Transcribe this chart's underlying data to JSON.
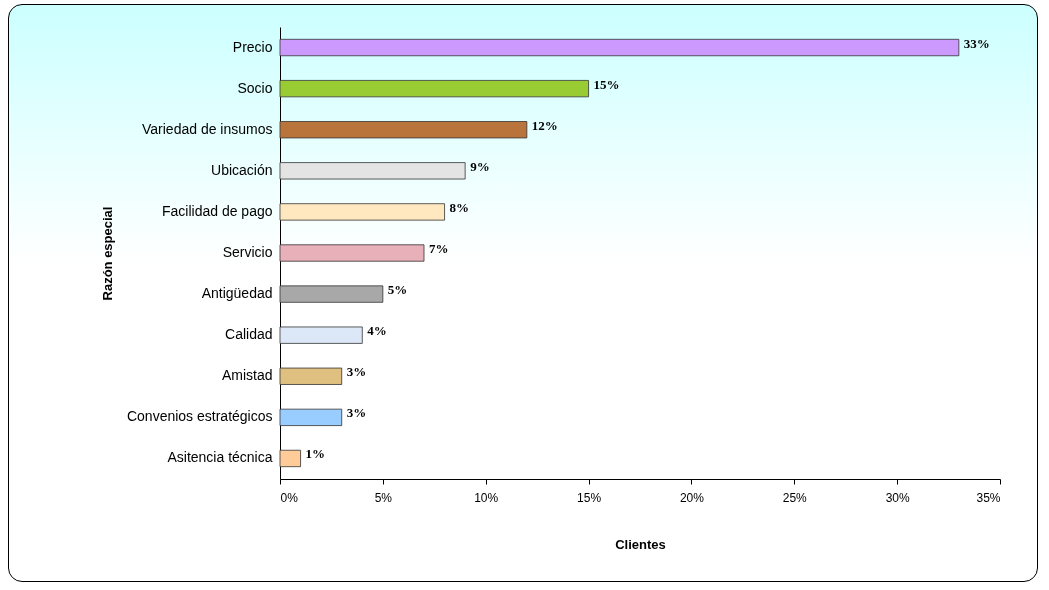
{
  "chart_data": {
    "type": "bar",
    "orientation": "horizontal",
    "xlabel": "Clientes",
    "ylabel": "Razón especial",
    "categories": [
      "Precio",
      "Socio",
      "Variedad de insumos",
      "Ubicación",
      "Facilidad de pago",
      "Servicio",
      "Antigüedad",
      "Calidad",
      "Amistad",
      "Convenios estratégicos",
      "Asitencia técnica"
    ],
    "values": [
      33,
      15,
      12,
      9,
      8,
      7,
      5,
      4,
      3,
      3,
      1
    ],
    "colors": [
      "#cc99ff",
      "#99cc33",
      "#b8743a",
      "#e4e4e4",
      "#ffe8c0",
      "#e8b0b8",
      "#a8a8a8",
      "#dce8f8",
      "#e0c080",
      "#99ccff",
      "#ffcc99"
    ],
    "value_labels": [
      "33%",
      "15%",
      "12%",
      "9%",
      "8%",
      "7%",
      "5%",
      "4%",
      "3%",
      "3%",
      "1%"
    ],
    "xlim": [
      0,
      35
    ],
    "xticks": [
      {
        "value": 0,
        "label": "0%"
      },
      {
        "value": 5,
        "label": "5%"
      },
      {
        "value": 10,
        "label": "10%"
      },
      {
        "value": 15,
        "label": "15%"
      },
      {
        "value": 20,
        "label": "20%"
      },
      {
        "value": 25,
        "label": "25%"
      },
      {
        "value": 30,
        "label": "30%"
      },
      {
        "value": 35,
        "label": "35%"
      }
    ],
    "grid": false
  }
}
